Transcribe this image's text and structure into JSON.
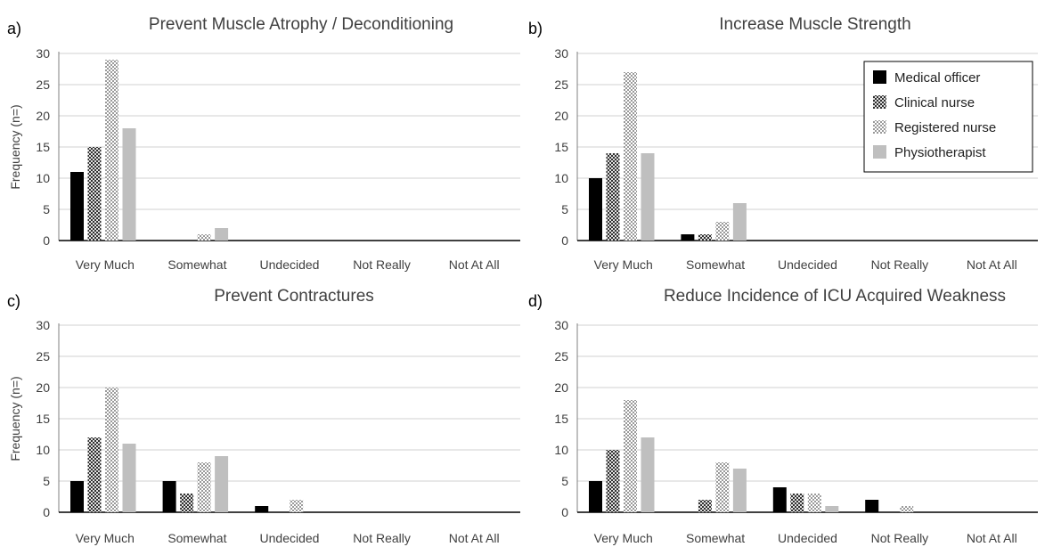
{
  "chart_data": [
    {
      "type": "bar",
      "panel_label": "a)",
      "title": "Prevent Muscle Atrophy / Deconditioning",
      "xlabel": "",
      "ylabel": "Frequency (n=)",
      "ylim": [
        0,
        30
      ],
      "yticks": [
        "0",
        "5",
        "10",
        "15",
        "20",
        "25",
        "30"
      ],
      "categories": [
        "Very Much",
        "Somewhat",
        "Undecided",
        "Not Really",
        "Not At All"
      ],
      "series": [
        {
          "name": "Medical officer",
          "values": [
            11,
            0,
            0,
            0,
            0
          ]
        },
        {
          "name": "Clinical nurse",
          "values": [
            15,
            0,
            0,
            0,
            0
          ]
        },
        {
          "name": "Registered nurse",
          "values": [
            29,
            1,
            0,
            0,
            0
          ]
        },
        {
          "name": "Physiotherapist",
          "values": [
            18,
            2,
            0,
            0,
            0
          ]
        }
      ],
      "grid": true,
      "legend": "none"
    },
    {
      "type": "bar",
      "panel_label": "b)",
      "title": "Increase Muscle Strength",
      "xlabel": "",
      "ylabel": "",
      "ylim": [
        0,
        30
      ],
      "yticks": [
        "0",
        "5",
        "10",
        "15",
        "20",
        "25",
        "30"
      ],
      "categories": [
        "Very Much",
        "Somewhat",
        "Undecided",
        "Not Really",
        "Not At All"
      ],
      "series": [
        {
          "name": "Medical officer",
          "values": [
            10,
            1,
            0,
            0,
            0
          ]
        },
        {
          "name": "Clinical nurse",
          "values": [
            14,
            1,
            0,
            0,
            0
          ]
        },
        {
          "name": "Registered nurse",
          "values": [
            27,
            3,
            0,
            0,
            0
          ]
        },
        {
          "name": "Physiotherapist",
          "values": [
            14,
            6,
            0,
            0,
            0
          ]
        }
      ],
      "grid": true,
      "legend": "top-right"
    },
    {
      "type": "bar",
      "panel_label": "c)",
      "title": "Prevent Contractures",
      "xlabel": "",
      "ylabel": "Frequency (n=)",
      "ylim": [
        0,
        30
      ],
      "yticks": [
        "0",
        "5",
        "10",
        "15",
        "20",
        "25",
        "30"
      ],
      "categories": [
        "Very Much",
        "Somewhat",
        "Undecided",
        "Not Really",
        "Not At All"
      ],
      "series": [
        {
          "name": "Medical officer",
          "values": [
            5,
            5,
            1,
            0,
            0
          ]
        },
        {
          "name": "Clinical nurse",
          "values": [
            12,
            3,
            0,
            0,
            0
          ]
        },
        {
          "name": "Registered nurse",
          "values": [
            20,
            8,
            2,
            0,
            0
          ]
        },
        {
          "name": "Physiotherapist",
          "values": [
            11,
            9,
            0,
            0,
            0
          ]
        }
      ],
      "grid": true,
      "legend": "none"
    },
    {
      "type": "bar",
      "panel_label": "d)",
      "title": "Reduce Incidence of ICU Acquired Weakness",
      "xlabel": "",
      "ylabel": "",
      "ylim": [
        0,
        30
      ],
      "yticks": [
        "0",
        "5",
        "10",
        "15",
        "20",
        "25",
        "30"
      ],
      "categories": [
        "Very Much",
        "Somewhat",
        "Undecided",
        "Not Really",
        "Not At All"
      ],
      "series": [
        {
          "name": "Medical officer",
          "values": [
            5,
            0,
            4,
            2,
            0
          ]
        },
        {
          "name": "Clinical nurse",
          "values": [
            10,
            2,
            3,
            0,
            0
          ]
        },
        {
          "name": "Registered nurse",
          "values": [
            18,
            8,
            3,
            1,
            0
          ]
        },
        {
          "name": "Physiotherapist",
          "values": [
            12,
            7,
            1,
            0,
            0
          ]
        }
      ],
      "grid": true,
      "legend": "none"
    }
  ],
  "series_style": [
    {
      "pattern": "solid",
      "color": "#000000"
    },
    {
      "pattern": "checker-dark",
      "color": "#404040"
    },
    {
      "pattern": "checker-light",
      "color": "#a6a6a6"
    },
    {
      "pattern": "solid",
      "color": "#bfbfbf"
    }
  ]
}
